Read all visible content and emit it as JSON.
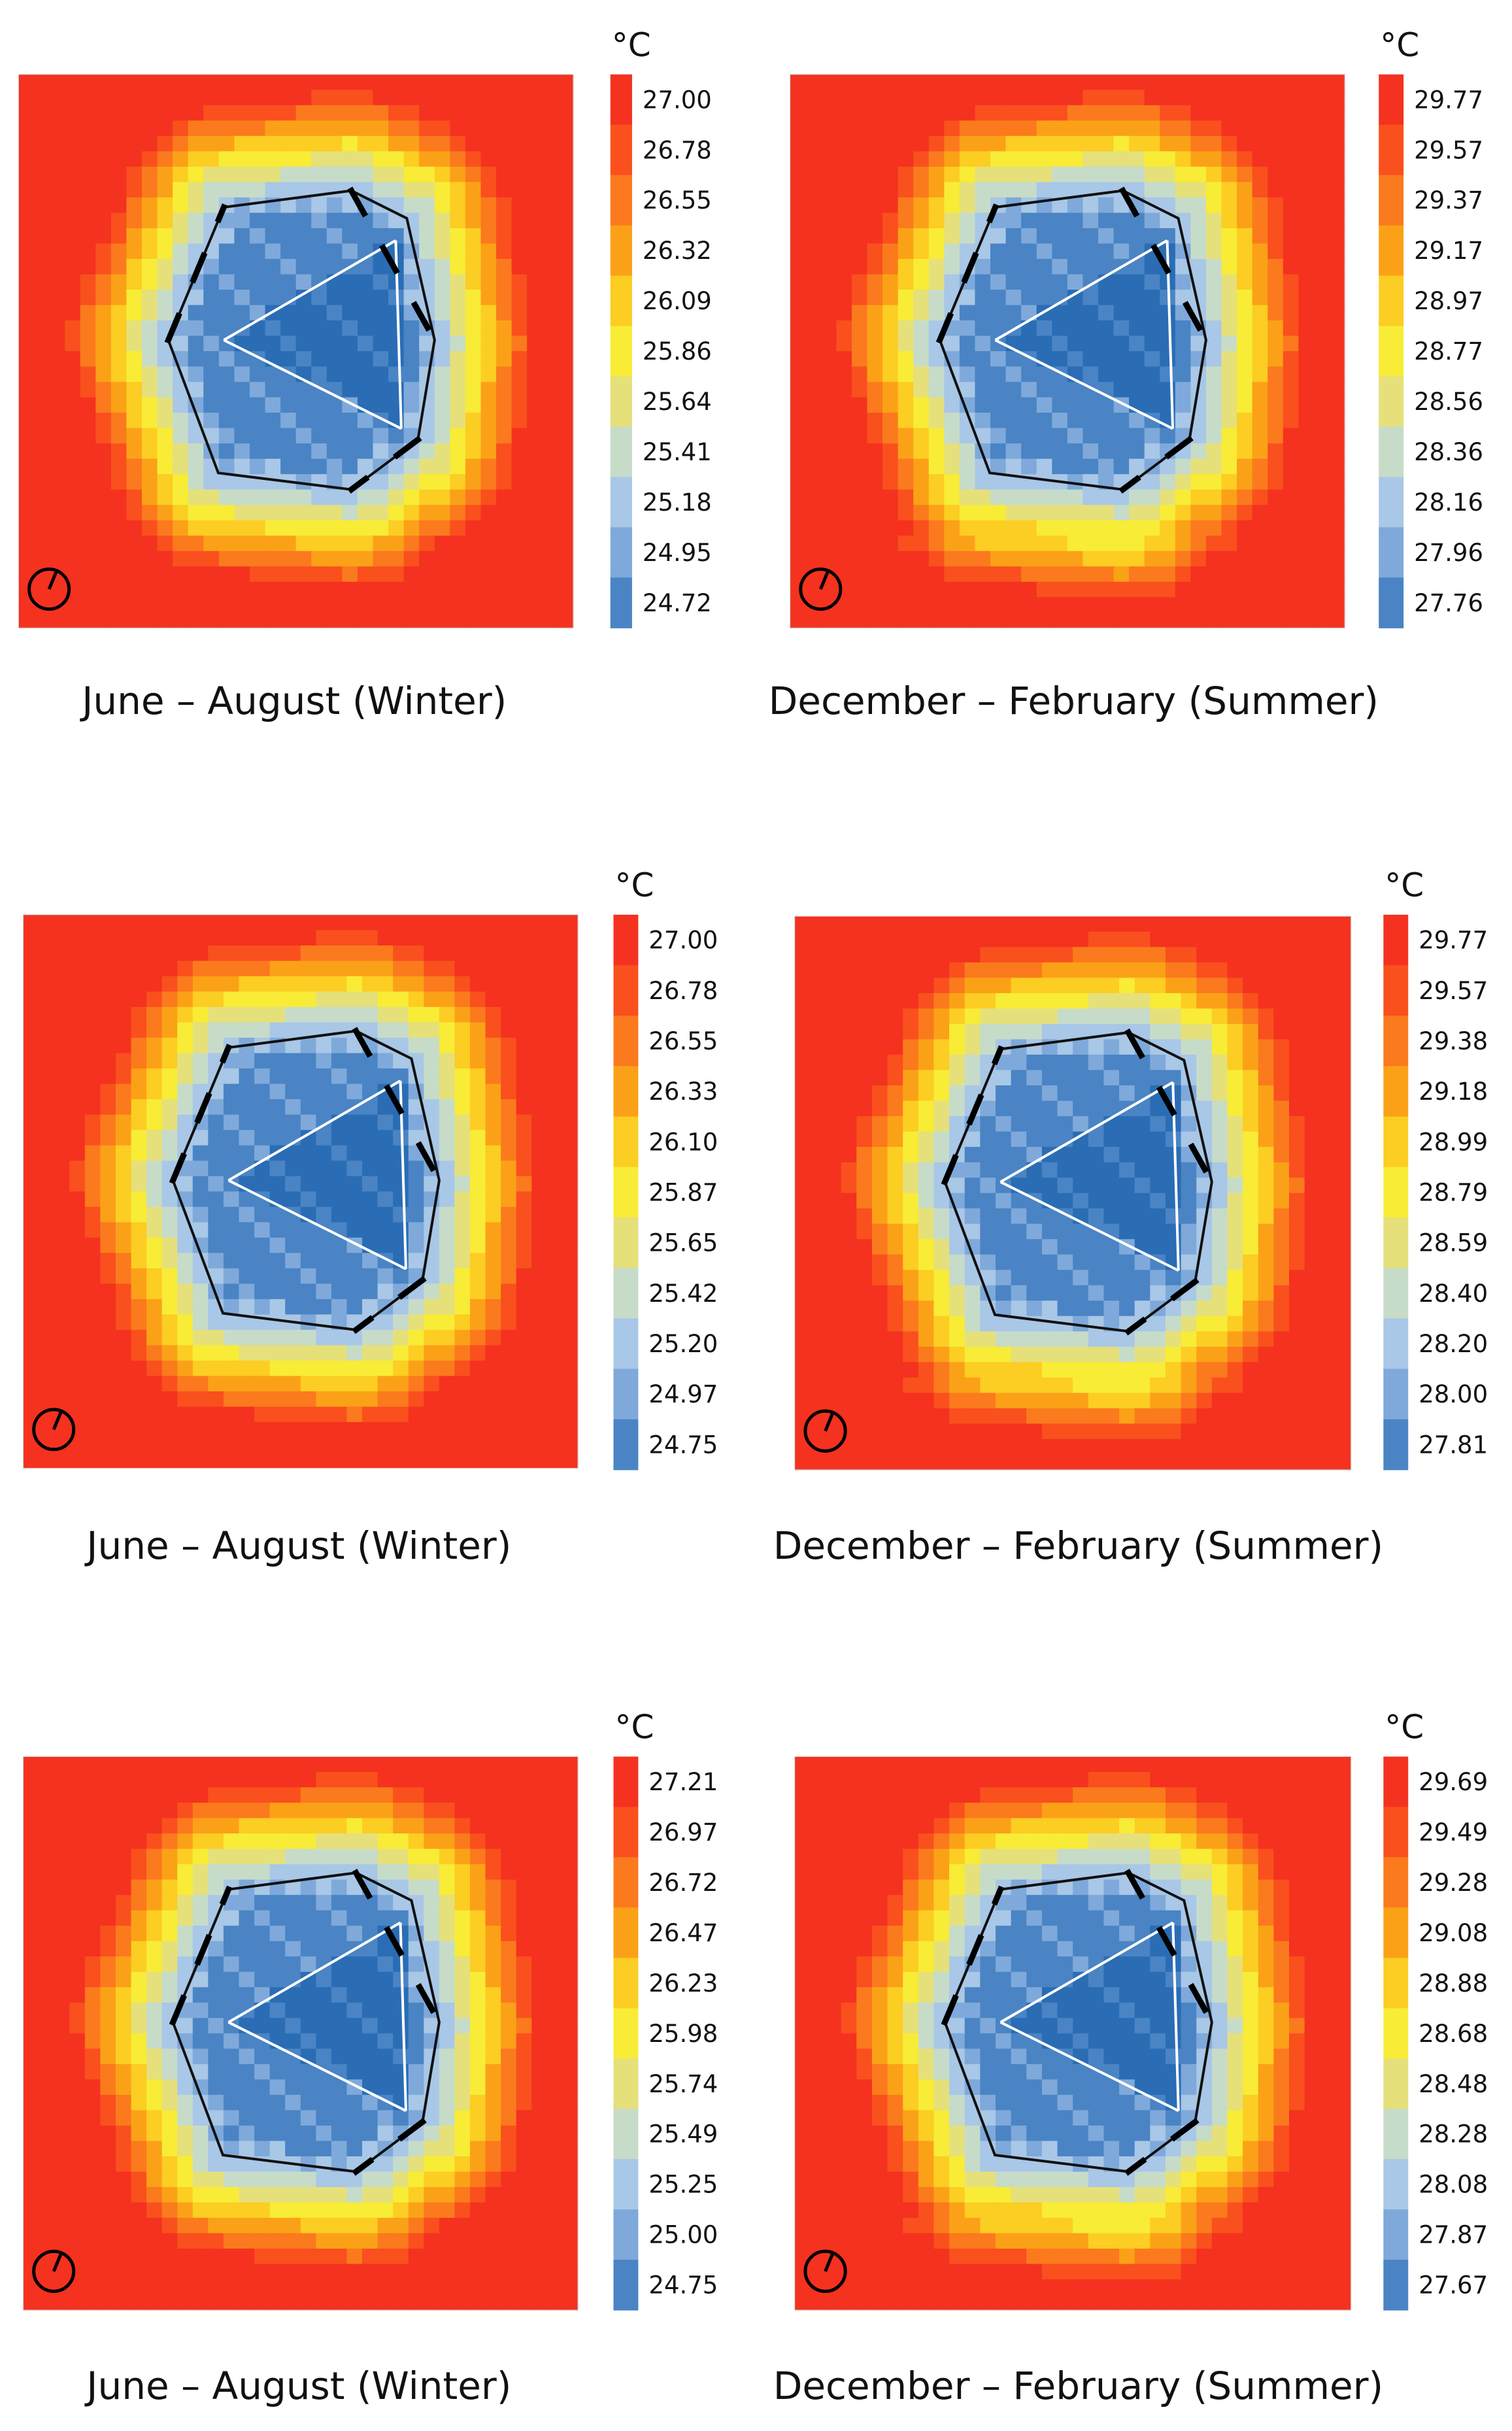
{
  "colors": [
    "#2a6db5",
    "#4a84c4",
    "#7ea9da",
    "#a9c7e6",
    "#c7dcc8",
    "#e5e07a",
    "#f8ec36",
    "#fccd22",
    "#fba117",
    "#fb7a1d",
    "#f9501e",
    "#f4321f"
  ],
  "icons": {
    "north": "north-arrow-icon"
  },
  "chart_data": [
    {
      "type": "heatmap",
      "title": "June – August (Winter)",
      "unit": "°C",
      "legend_values": [
        "27.00",
        "26.78",
        "26.55",
        "26.32",
        "26.09",
        "25.86",
        "25.64",
        "25.41",
        "25.18",
        "24.95",
        "24.72"
      ],
      "range": [
        24.72,
        27.0
      ],
      "grid": false,
      "legend": "right"
    },
    {
      "type": "heatmap",
      "title": "December – February (Summer)",
      "unit": "°C",
      "legend_values": [
        "29.77",
        "29.57",
        "29.37",
        "29.17",
        "28.97",
        "28.77",
        "28.56",
        "28.36",
        "28.16",
        "27.96",
        "27.76"
      ],
      "range": [
        27.76,
        29.77
      ],
      "grid": false,
      "legend": "right"
    },
    {
      "type": "heatmap",
      "title": "June – August (Winter)",
      "unit": "°C",
      "legend_values": [
        "27.00",
        "26.78",
        "26.55",
        "26.33",
        "26.10",
        "25.87",
        "25.65",
        "25.42",
        "25.20",
        "24.97",
        "24.75"
      ],
      "range": [
        24.75,
        27.0
      ],
      "grid": false,
      "legend": "right"
    },
    {
      "type": "heatmap",
      "title": "December – February (Summer)",
      "unit": "°C",
      "legend_values": [
        "29.77",
        "29.57",
        "29.38",
        "29.18",
        "28.99",
        "28.79",
        "28.59",
        "28.40",
        "28.20",
        "28.00",
        "27.81"
      ],
      "range": [
        27.81,
        29.77
      ],
      "grid": false,
      "legend": "right"
    },
    {
      "type": "heatmap",
      "title": "June – August (Winter)",
      "unit": "°C",
      "legend_values": [
        "27.21",
        "26.97",
        "26.72",
        "26.47",
        "26.23",
        "25.98",
        "25.74",
        "25.49",
        "25.25",
        "25.00",
        "24.75"
      ],
      "range": [
        24.75,
        27.21
      ],
      "grid": false,
      "legend": "right"
    },
    {
      "type": "heatmap",
      "title": "December – February (Summer)",
      "unit": "°C",
      "legend_values": [
        "29.69",
        "29.49",
        "29.28",
        "29.08",
        "28.88",
        "28.68",
        "28.48",
        "28.28",
        "28.08",
        "27.87",
        "27.67"
      ],
      "range": [
        27.67,
        29.69
      ],
      "grid": false,
      "legend": "right"
    }
  ]
}
